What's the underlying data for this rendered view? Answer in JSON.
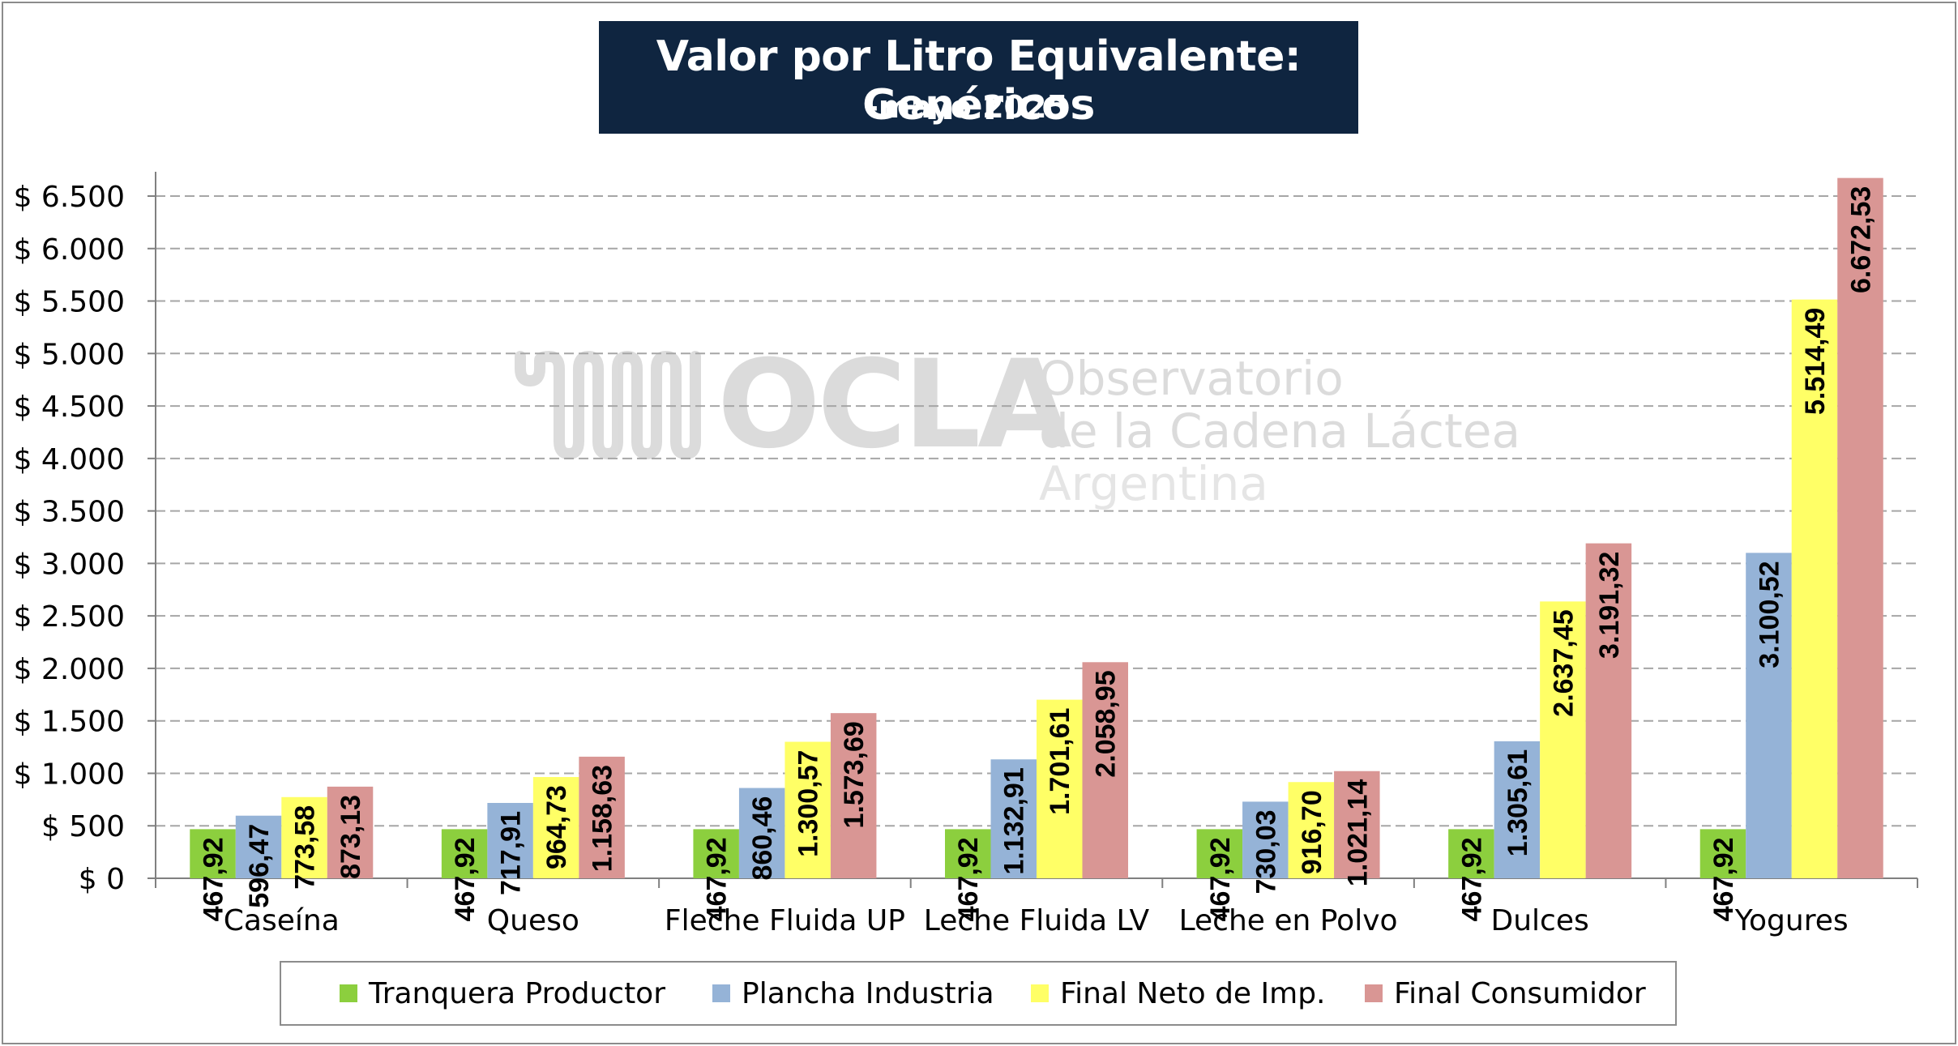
{
  "title": "Valor por Litro Equivalente: Genéricos",
  "subtitle": "-mayo 2025 -",
  "watermark": {
    "name": "OCLA",
    "line1": "Observatorio",
    "line2": "de la Cadena Láctea",
    "line3": "Argentina"
  },
  "colors": {
    "title_bg": "#0f2540",
    "Tranquera Productor": "#8ccf3e",
    "Plancha Industria": "#95b3d7",
    "Final Neto de Imp.": "#ffff66",
    "Final Consumidor": "#d99694",
    "grid": "#a6a6a6"
  },
  "chart_data": {
    "type": "bar",
    "title": "Valor por Litro Equivalente: Genéricos",
    "subtitle": "-mayo 2025 -",
    "xlabel": "",
    "ylabel": "",
    "ylim": [
      0,
      6800
    ],
    "yticks": [
      0,
      500,
      1000,
      1500,
      2000,
      2500,
      3000,
      3500,
      4000,
      4500,
      5000,
      5500,
      6000,
      6500
    ],
    "ytick_labels": [
      "$ 0",
      "$ 500",
      "$ 1.000",
      "$ 1.500",
      "$ 2.000",
      "$ 2.500",
      "$ 3.000",
      "$ 3.500",
      "$ 4.000",
      "$ 4.500",
      "$ 5.000",
      "$ 5.500",
      "$ 6.000",
      "$ 6.500"
    ],
    "grid": true,
    "legend_position": "bottom",
    "categories": [
      "Caseína",
      "Queso",
      "Fleche Fluida UP",
      "Leche Fluida LV",
      "Leche en Polvo",
      "Dulces",
      "Yogures"
    ],
    "series": [
      {
        "name": "Tranquera Productor",
        "values": [
          467.92,
          467.92,
          467.92,
          467.92,
          467.92,
          467.92,
          467.92
        ],
        "labels": [
          "467,92",
          "467,92",
          "467,92",
          "467,92",
          "467,92",
          "467,92",
          "467,92"
        ]
      },
      {
        "name": "Plancha Industria",
        "values": [
          596.47,
          717.91,
          860.46,
          1132.91,
          730.03,
          1305.61,
          3100.52
        ],
        "labels": [
          "596,47",
          "717,91",
          "860,46",
          "1.132,91",
          "730,03",
          "1.305,61",
          "3.100,52"
        ]
      },
      {
        "name": "Final Neto de Imp.",
        "values": [
          773.58,
          964.73,
          1300.57,
          1701.61,
          916.7,
          2637.45,
          5514.49
        ],
        "labels": [
          "773,58",
          "964,73",
          "1.300,57",
          "1.701,61",
          "916,70",
          "2.637,45",
          "5.514,49"
        ]
      },
      {
        "name": "Final Consumidor",
        "values": [
          873.13,
          1158.63,
          1573.69,
          2058.95,
          1021.14,
          3191.32,
          6672.53
        ],
        "labels": [
          "873,13",
          "1.158,63",
          "1.573,69",
          "2.058,95",
          "1.021,14",
          "3.191,32",
          "6.672,53"
        ]
      }
    ]
  }
}
